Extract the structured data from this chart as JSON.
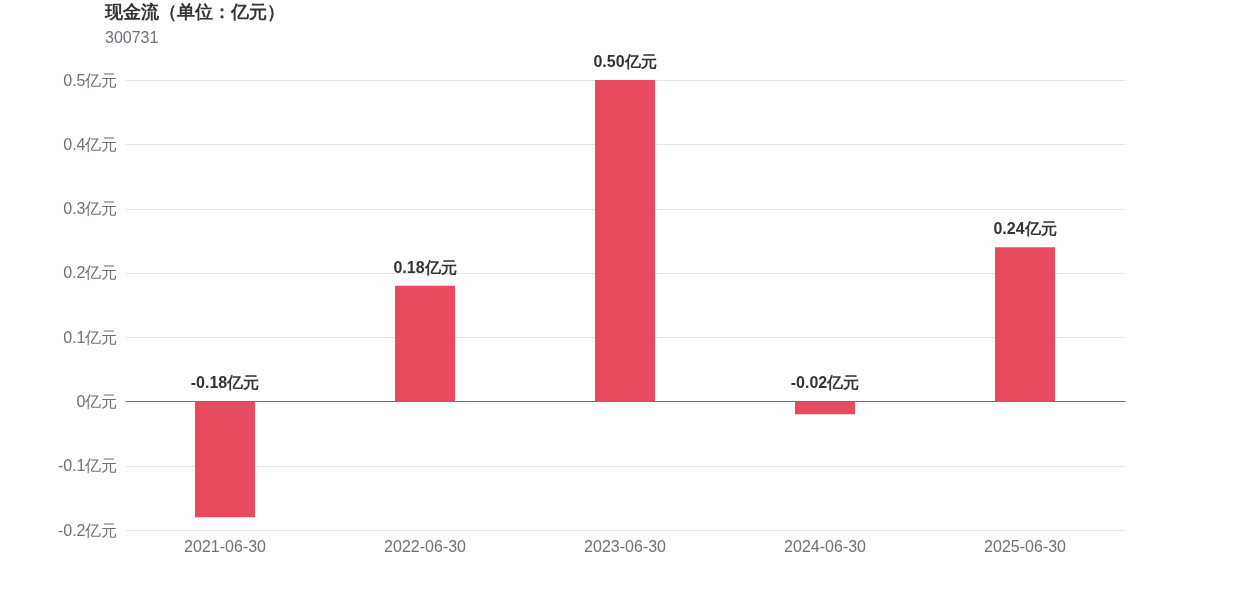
{
  "chart_data": {
    "type": "bar",
    "title": "现金流（单位：亿元）",
    "subtitle": "300731",
    "categories": [
      "2021-06-30",
      "2022-06-30",
      "2023-06-30",
      "2024-06-30",
      "2025-06-30"
    ],
    "values": [
      -0.18,
      0.18,
      0.5,
      -0.02,
      0.24
    ],
    "value_labels": [
      "-0.18亿元",
      "0.18亿元",
      "0.50亿元",
      "-0.02亿元",
      "0.24亿元"
    ],
    "color": "#e64b5f",
    "ylim": [
      -0.2,
      0.5
    ],
    "yticks": [
      {
        "value": -0.2,
        "label": "-0.2亿元"
      },
      {
        "value": -0.1,
        "label": "-0.1亿元"
      },
      {
        "value": 0,
        "label": "0亿元"
      },
      {
        "value": 0.1,
        "label": "0.1亿元"
      },
      {
        "value": 0.2,
        "label": "0.2亿元"
      },
      {
        "value": 0.3,
        "label": "0.3亿元"
      },
      {
        "value": 0.4,
        "label": "0.4亿元"
      },
      {
        "value": 0.5,
        "label": "0.5亿元"
      }
    ],
    "grid": true
  }
}
